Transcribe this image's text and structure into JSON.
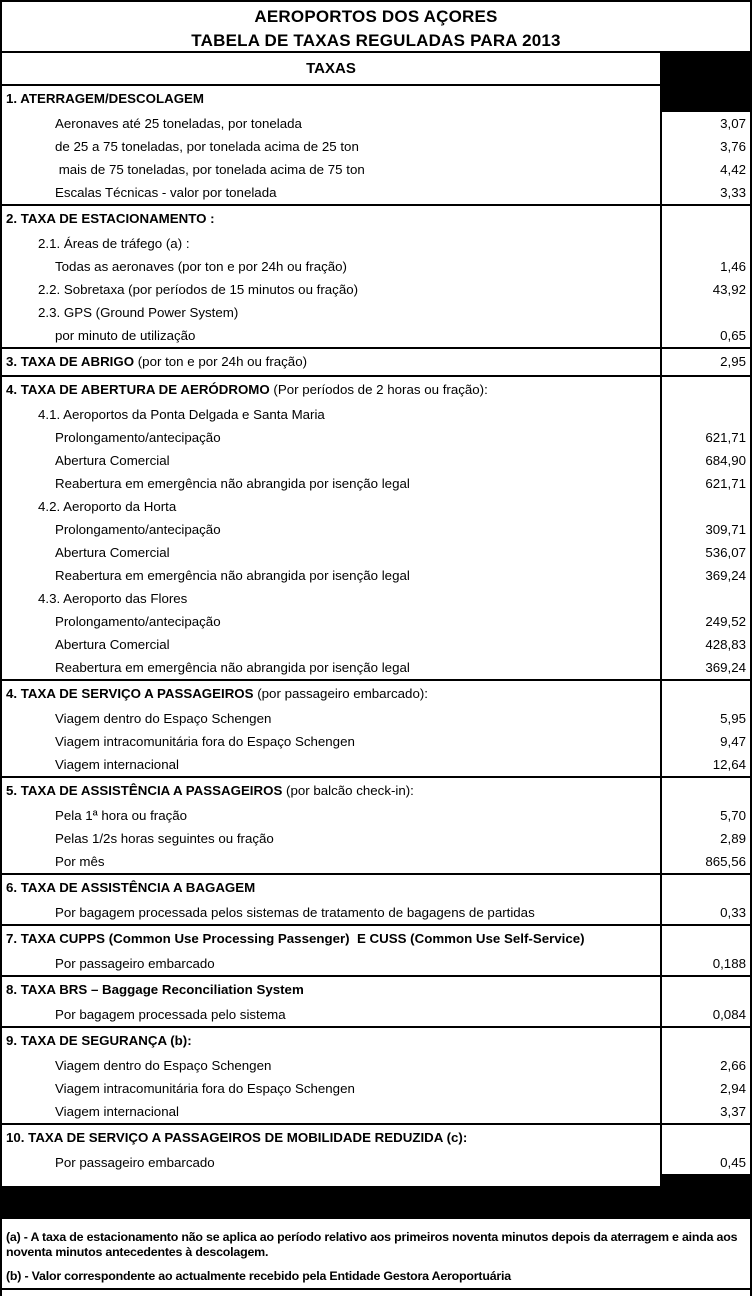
{
  "title": {
    "line1": "AEROPORTOS DOS AÇORES",
    "line2": "TABELA DE TAXAS REGULADAS PARA 2013"
  },
  "table": {
    "header": "TAXAS",
    "value_column_header_redacted": true,
    "sections": [
      {
        "heading_bold": "1. ATERRAGEM/DESCOLAGEM",
        "heading_normal": "",
        "heading_value": "",
        "redacted": true,
        "rows": [
          {
            "label": "Aeronaves até 25 toneladas, por tonelada",
            "indent": 2,
            "value": "3,07"
          },
          {
            "label": "de 25 a 75 toneladas, por tonelada acima de 25 ton",
            "indent": 2,
            "value": "3,76"
          },
          {
            "label": " mais de 75 toneladas, por tonelada acima de 75 ton",
            "indent": 2,
            "value": "4,42"
          },
          {
            "label": "Escalas Técnicas - valor por tonelada",
            "indent": 2,
            "value": "3,33"
          }
        ]
      },
      {
        "heading_bold": "2. TAXA DE ESTACIONAMENTO :",
        "heading_normal": "",
        "heading_value": "",
        "redacted": false,
        "rows": [
          {
            "label": "2.1. Áreas de tráfego (a) :",
            "indent": 1,
            "value": ""
          },
          {
            "label": "Todas as aeronaves (por ton e por 24h ou fração)",
            "indent": 2,
            "value": "1,46"
          },
          {
            "label": "2.2. Sobretaxa (por períodos de 15 minutos ou fração)",
            "indent": 1,
            "value": "43,92"
          },
          {
            "label": "2.3. GPS (Ground Power System)",
            "indent": 1,
            "value": ""
          },
          {
            "label": "por minuto de utilização",
            "indent": 2,
            "value": "0,65"
          }
        ]
      },
      {
        "heading_bold": "3. TAXA DE ABRIGO",
        "heading_normal": " (por ton e por 24h ou fração)",
        "heading_value": "2,95",
        "redacted": false,
        "rows": []
      },
      {
        "heading_bold": "4. TAXA DE ABERTURA DE AERÓDROMO",
        "heading_normal": " (Por períodos de 2 horas ou fração):",
        "heading_value": "",
        "redacted": false,
        "rows": [
          {
            "label": "4.1. Aeroportos da Ponta Delgada e Santa Maria",
            "indent": 1,
            "value": ""
          },
          {
            "label": "Prolongamento/antecipação",
            "indent": 2,
            "value": "621,71"
          },
          {
            "label": "Abertura Comercial",
            "indent": 2,
            "value": "684,90"
          },
          {
            "label": "Reabertura em emergência não abrangida por isenção legal",
            "indent": 2,
            "value": "621,71"
          },
          {
            "label": "4.2. Aeroporto da Horta",
            "indent": 1,
            "value": ""
          },
          {
            "label": "Prolongamento/antecipação",
            "indent": 2,
            "value": "309,71"
          },
          {
            "label": "Abertura Comercial",
            "indent": 2,
            "value": "536,07"
          },
          {
            "label": "Reabertura em emergência não abrangida por isenção legal",
            "indent": 2,
            "value": "369,24"
          },
          {
            "label": "4.3. Aeroporto das Flores",
            "indent": 1,
            "value": ""
          },
          {
            "label": "Prolongamento/antecipação",
            "indent": 2,
            "value": "249,52"
          },
          {
            "label": "Abertura Comercial",
            "indent": 2,
            "value": "428,83"
          },
          {
            "label": "Reabertura em emergência não abrangida por isenção legal",
            "indent": 2,
            "value": "369,24"
          }
        ]
      },
      {
        "heading_bold": "4. TAXA DE SERVIÇO A PASSAGEIROS",
        "heading_normal": " (por passageiro embarcado):",
        "heading_value": "",
        "redacted": false,
        "rows": [
          {
            "label": "Viagem dentro do Espaço Schengen",
            "indent": 2,
            "value": "5,95"
          },
          {
            "label": "Viagem intracomunitária fora do Espaço Schengen",
            "indent": 2,
            "value": "9,47"
          },
          {
            "label": "Viagem internacional",
            "indent": 2,
            "value": "12,64"
          }
        ]
      },
      {
        "heading_bold": "5. TAXA DE ASSISTÊNCIA A PASSAGEIROS",
        "heading_normal": " (por balcão check-in):",
        "heading_value": "",
        "redacted": false,
        "rows": [
          {
            "label": "Pela 1ª hora ou fração",
            "indent": 2,
            "value": "5,70"
          },
          {
            "label": "Pelas 1/2s horas seguintes ou fração",
            "indent": 2,
            "value": "2,89"
          },
          {
            "label": "Por mês",
            "indent": 2,
            "value": "865,56"
          }
        ]
      },
      {
        "heading_bold": "6. TAXA DE ASSISTÊNCIA A BAGAGEM",
        "heading_normal": "",
        "heading_value": "",
        "redacted": false,
        "rows": [
          {
            "label": "Por bagagem processada pelos sistemas de tratamento de bagagens de partidas",
            "indent": 2,
            "value": "0,33"
          }
        ]
      },
      {
        "heading_bold": "7. TAXA CUPPS (Common Use Processing Passenger)  E CUSS (Common Use Self-Service)",
        "heading_normal": "",
        "heading_value": "",
        "redacted": false,
        "rows": [
          {
            "label": "Por passageiro embarcado",
            "indent": 2,
            "value": "0,188"
          }
        ]
      },
      {
        "heading_bold": "8. TAXA BRS – Baggage Reconciliation System",
        "heading_normal": "",
        "heading_value": "",
        "redacted": false,
        "rows": [
          {
            "label": "Por bagagem processada pelo sistema",
            "indent": 2,
            "value": "0,084"
          }
        ]
      },
      {
        "heading_bold": "9. TAXA DE SEGURANÇA (b):",
        "heading_normal": "",
        "heading_value": "",
        "redacted": false,
        "rows": [
          {
            "label": "Viagem dentro do Espaço Schengen",
            "indent": 2,
            "value": "2,66"
          },
          {
            "label": "Viagem intracomunitária fora do Espaço Schengen",
            "indent": 2,
            "value": "2,94"
          },
          {
            "label": "Viagem internacional",
            "indent": 2,
            "value": "3,37"
          }
        ]
      },
      {
        "heading_bold": "10. TAXA DE SERVIÇO A PASSAGEIROS DE MOBILIDADE REDUZIDA (c):",
        "heading_normal": "",
        "heading_value": "",
        "redacted": false,
        "rows": [
          {
            "label": "Por passageiro embarcado",
            "indent": 2,
            "value": "0,45"
          }
        ]
      }
    ]
  },
  "footnotes": [
    "(a) - A taxa de estacionamento não se aplica ao período relativo aos primeiros noventa minutos depois da aterragem e ainda aos noventa minutos antecedentes à descolagem.",
    "(b) - Valor correspondente ao actualmente recebido pela Entidade Gestora Aeroportuária"
  ],
  "colors": {
    "text": "#000000",
    "background": "#ffffff",
    "border": "#000000",
    "redacted_block": "#000000"
  }
}
